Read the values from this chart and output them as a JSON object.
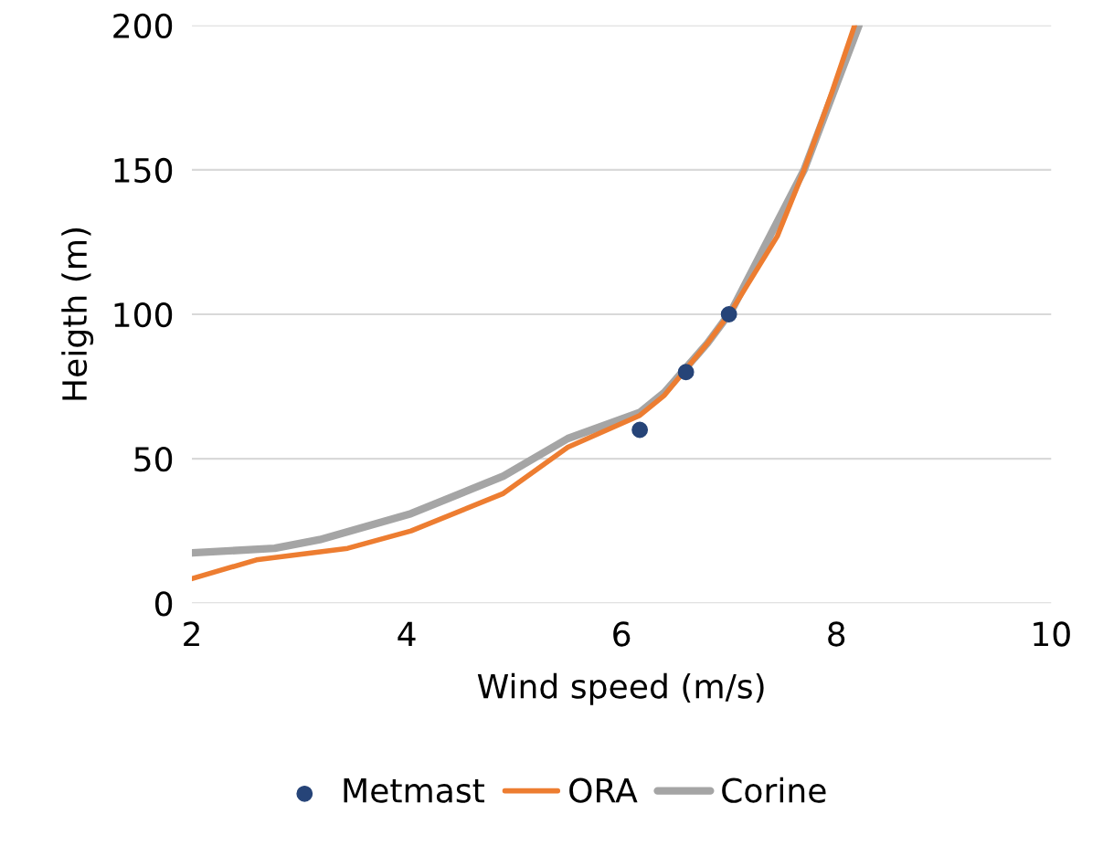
{
  "chart_data": {
    "type": "line",
    "xlabel": "Wind speed (m/s)",
    "ylabel": "Heigth (m)",
    "xlim": [
      2,
      10
    ],
    "xticks": [
      2,
      4,
      6,
      8,
      10
    ],
    "ylim": [
      0,
      200
    ],
    "yticks": [
      0,
      50,
      100,
      150,
      200
    ],
    "grid": "y",
    "legend": "bottom",
    "series": [
      {
        "name": "Metmast",
        "type": "scatter",
        "marker": "circle",
        "color": "#264478",
        "x": [
          6.17,
          6.6,
          7.0
        ],
        "values": [
          60,
          80,
          100
        ]
      },
      {
        "name": "ORA",
        "marker": "none",
        "color": "#ed7d31",
        "x": [
          2,
          2.6,
          3.45,
          4.04,
          4.9,
          5.5,
          6.17,
          6.4,
          6.8,
          7.02,
          7.45,
          7.7,
          7.96,
          8.17
        ],
        "values": [
          8.5,
          15,
          19,
          25,
          38,
          54,
          65,
          72,
          90,
          101,
          127,
          150,
          177,
          200
        ]
      },
      {
        "name": "Corine",
        "marker": "none",
        "color": "#a5a5a5",
        "x": [
          2,
          2.77,
          3.19,
          4.04,
          4.9,
          5.5,
          6.17,
          6.4,
          6.8,
          7.02,
          7.7,
          8.21
        ],
        "values": [
          17.4,
          19,
          22,
          31,
          44,
          57,
          66,
          73,
          90,
          101,
          150,
          200
        ]
      }
    ]
  }
}
